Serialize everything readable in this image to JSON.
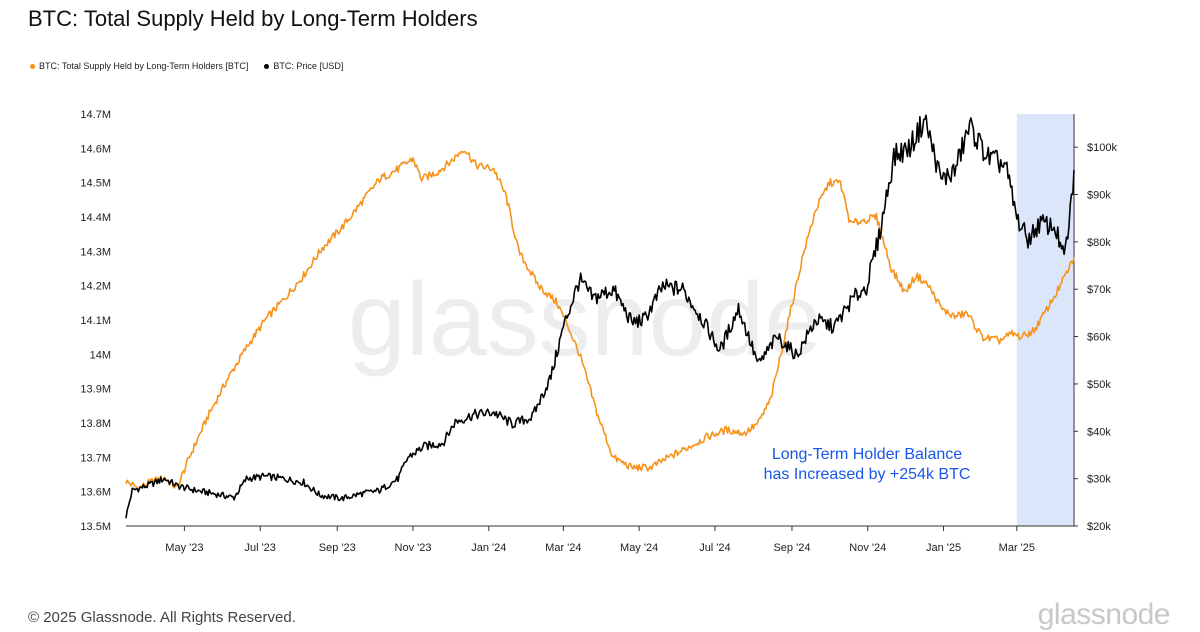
{
  "title": "BTC: Total Supply Held by Long-Term Holders",
  "footer": "© 2025 Glassnode. All Rights Reserved.",
  "logo": "glassnode",
  "watermark": "glassnode",
  "annotation": {
    "line1": "Long-Term Holder Balance",
    "line2": "has Increased by +254k BTC",
    "color": "#1a56e8"
  },
  "colors": {
    "supply": "#f7931a",
    "price": "#000000",
    "highlight": "#dbe6fb"
  },
  "chart_data": {
    "type": "line",
    "title": "BTC: Total Supply Held by Long-Term Holders",
    "x_range": [
      "2023-03-15",
      "2025-04-16"
    ],
    "x_ticks": [
      "May '23",
      "Jul '23",
      "Sep '23",
      "Nov '23",
      "Jan '24",
      "Mar '24",
      "May '24",
      "Jul '24",
      "Sep '24",
      "Nov '24",
      "Jan '25",
      "Mar '25"
    ],
    "y_left": {
      "range": [
        13500000,
        14700000
      ],
      "ticks": [
        {
          "value": 13500000,
          "label": "13.5M"
        },
        {
          "value": 13600000,
          "label": "13.6M"
        },
        {
          "value": 13700000,
          "label": "13.7M"
        },
        {
          "value": 13800000,
          "label": "13.8M"
        },
        {
          "value": 13900000,
          "label": "13.9M"
        },
        {
          "value": 14000000,
          "label": "14M"
        },
        {
          "value": 14100000,
          "label": "14.1M"
        },
        {
          "value": 14200000,
          "label": "14.2M"
        },
        {
          "value": 14300000,
          "label": "14.3M"
        },
        {
          "value": 14400000,
          "label": "14.4M"
        },
        {
          "value": 14500000,
          "label": "14.5M"
        },
        {
          "value": 14600000,
          "label": "14.6M"
        },
        {
          "value": 14700000,
          "label": "14.7M"
        }
      ]
    },
    "y_right": {
      "range": [
        20000,
        107000
      ],
      "ticks": [
        {
          "value": 20000,
          "label": "$20k"
        },
        {
          "value": 30000,
          "label": "$30k"
        },
        {
          "value": 40000,
          "label": "$40k"
        },
        {
          "value": 50000,
          "label": "$50k"
        },
        {
          "value": 60000,
          "label": "$60k"
        },
        {
          "value": 70000,
          "label": "$70k"
        },
        {
          "value": 80000,
          "label": "$80k"
        },
        {
          "value": 90000,
          "label": "$90k"
        },
        {
          "value": 100000,
          "label": "$100k"
        }
      ]
    },
    "highlight_range": [
      "2025-03-01",
      "2025-04-16"
    ],
    "legend_position": "top-left",
    "grid": false,
    "series": [
      {
        "name": "BTC: Total Supply Held by Long-Term Holders [BTC]",
        "axis": "left",
        "points": [
          [
            "2023-03-15",
            13630000
          ],
          [
            "2023-03-25",
            13610000
          ],
          [
            "2023-04-05",
            13630000
          ],
          [
            "2023-04-15",
            13640000
          ],
          [
            "2023-04-25",
            13610000
          ],
          [
            "2023-05-05",
            13700000
          ],
          [
            "2023-05-20",
            13820000
          ],
          [
            "2023-06-05",
            13930000
          ],
          [
            "2023-06-20",
            14020000
          ],
          [
            "2023-07-05",
            14100000
          ],
          [
            "2023-07-20",
            14160000
          ],
          [
            "2023-08-05",
            14230000
          ],
          [
            "2023-08-20",
            14310000
          ],
          [
            "2023-09-05",
            14370000
          ],
          [
            "2023-09-20",
            14440000
          ],
          [
            "2023-10-05",
            14510000
          ],
          [
            "2023-10-20",
            14540000
          ],
          [
            "2023-11-01",
            14570000
          ],
          [
            "2023-11-08",
            14510000
          ],
          [
            "2023-11-20",
            14530000
          ],
          [
            "2023-12-01",
            14560000
          ],
          [
            "2023-12-12",
            14600000
          ],
          [
            "2023-12-22",
            14550000
          ],
          [
            "2024-01-05",
            14540000
          ],
          [
            "2024-01-15",
            14460000
          ],
          [
            "2024-01-25",
            14300000
          ],
          [
            "2024-02-10",
            14200000
          ],
          [
            "2024-02-25",
            14150000
          ],
          [
            "2024-03-05",
            14080000
          ],
          [
            "2024-03-15",
            13990000
          ],
          [
            "2024-03-28",
            13830000
          ],
          [
            "2024-04-10",
            13700000
          ],
          [
            "2024-04-25",
            13670000
          ],
          [
            "2024-05-10",
            13670000
          ],
          [
            "2024-05-25",
            13700000
          ],
          [
            "2024-06-10",
            13730000
          ],
          [
            "2024-06-25",
            13760000
          ],
          [
            "2024-07-10",
            13780000
          ],
          [
            "2024-07-25",
            13770000
          ],
          [
            "2024-08-05",
            13800000
          ],
          [
            "2024-08-15",
            13870000
          ],
          [
            "2024-08-28",
            14080000
          ],
          [
            "2024-09-10",
            14290000
          ],
          [
            "2024-09-20",
            14420000
          ],
          [
            "2024-10-01",
            14500000
          ],
          [
            "2024-10-10",
            14500000
          ],
          [
            "2024-10-18",
            14380000
          ],
          [
            "2024-10-28",
            14390000
          ],
          [
            "2024-11-08",
            14400000
          ],
          [
            "2024-11-20",
            14250000
          ],
          [
            "2024-12-01",
            14180000
          ],
          [
            "2024-12-10",
            14230000
          ],
          [
            "2024-12-20",
            14200000
          ],
          [
            "2024-12-31",
            14130000
          ],
          [
            "2025-01-10",
            14110000
          ],
          [
            "2025-01-20",
            14120000
          ],
          [
            "2025-02-01",
            14050000
          ],
          [
            "2025-02-15",
            14040000
          ],
          [
            "2025-02-25",
            14060000
          ],
          [
            "2025-03-05",
            14050000
          ],
          [
            "2025-03-15",
            14070000
          ],
          [
            "2025-03-25",
            14130000
          ],
          [
            "2025-04-05",
            14200000
          ],
          [
            "2025-04-16",
            14280000
          ]
        ]
      },
      {
        "name": "BTC: Price [USD]",
        "axis": "right",
        "points": [
          [
            "2023-03-15",
            22000
          ],
          [
            "2023-03-20",
            27500
          ],
          [
            "2023-04-01",
            28500
          ],
          [
            "2023-04-15",
            30000
          ],
          [
            "2023-04-25",
            28500
          ],
          [
            "2023-05-10",
            27500
          ],
          [
            "2023-05-25",
            26800
          ],
          [
            "2023-06-10",
            26000
          ],
          [
            "2023-06-20",
            30000
          ],
          [
            "2023-07-05",
            30500
          ],
          [
            "2023-07-20",
            30000
          ],
          [
            "2023-08-05",
            29200
          ],
          [
            "2023-08-18",
            26500
          ],
          [
            "2023-09-05",
            25800
          ],
          [
            "2023-09-20",
            26800
          ],
          [
            "2023-10-05",
            27500
          ],
          [
            "2023-10-20",
            30000
          ],
          [
            "2023-10-28",
            34500
          ],
          [
            "2023-11-10",
            36800
          ],
          [
            "2023-11-25",
            37500
          ],
          [
            "2023-12-05",
            42000
          ],
          [
            "2023-12-20",
            43500
          ],
          [
            "2024-01-05",
            44000
          ],
          [
            "2024-01-20",
            41500
          ],
          [
            "2024-02-05",
            43000
          ],
          [
            "2024-02-20",
            51500
          ],
          [
            "2024-03-01",
            62000
          ],
          [
            "2024-03-14",
            72000
          ],
          [
            "2024-03-25",
            68000
          ],
          [
            "2024-04-10",
            70000
          ],
          [
            "2024-04-25",
            63000
          ],
          [
            "2024-05-05",
            63500
          ],
          [
            "2024-05-20",
            70500
          ],
          [
            "2024-06-05",
            70000
          ],
          [
            "2024-06-20",
            64000
          ],
          [
            "2024-07-05",
            57000
          ],
          [
            "2024-07-20",
            66000
          ],
          [
            "2024-08-05",
            54000
          ],
          [
            "2024-08-20",
            60000
          ],
          [
            "2024-09-05",
            56000
          ],
          [
            "2024-09-20",
            63500
          ],
          [
            "2024-10-05",
            62000
          ],
          [
            "2024-10-20",
            68000
          ],
          [
            "2024-10-31",
            70500
          ],
          [
            "2024-11-10",
            81000
          ],
          [
            "2024-11-22",
            98000
          ],
          [
            "2024-12-05",
            100000
          ],
          [
            "2024-12-17",
            106000
          ],
          [
            "2024-12-30",
            93000
          ],
          [
            "2025-01-10",
            95000
          ],
          [
            "2025-01-22",
            104500
          ],
          [
            "2025-02-05",
            98000
          ],
          [
            "2025-02-20",
            96000
          ],
          [
            "2025-03-01",
            85000
          ],
          [
            "2025-03-10",
            80500
          ],
          [
            "2025-03-20",
            84000
          ],
          [
            "2025-04-01",
            83000
          ],
          [
            "2025-04-08",
            76500
          ],
          [
            "2025-04-12",
            83500
          ],
          [
            "2025-04-16",
            94500
          ]
        ]
      }
    ]
  }
}
